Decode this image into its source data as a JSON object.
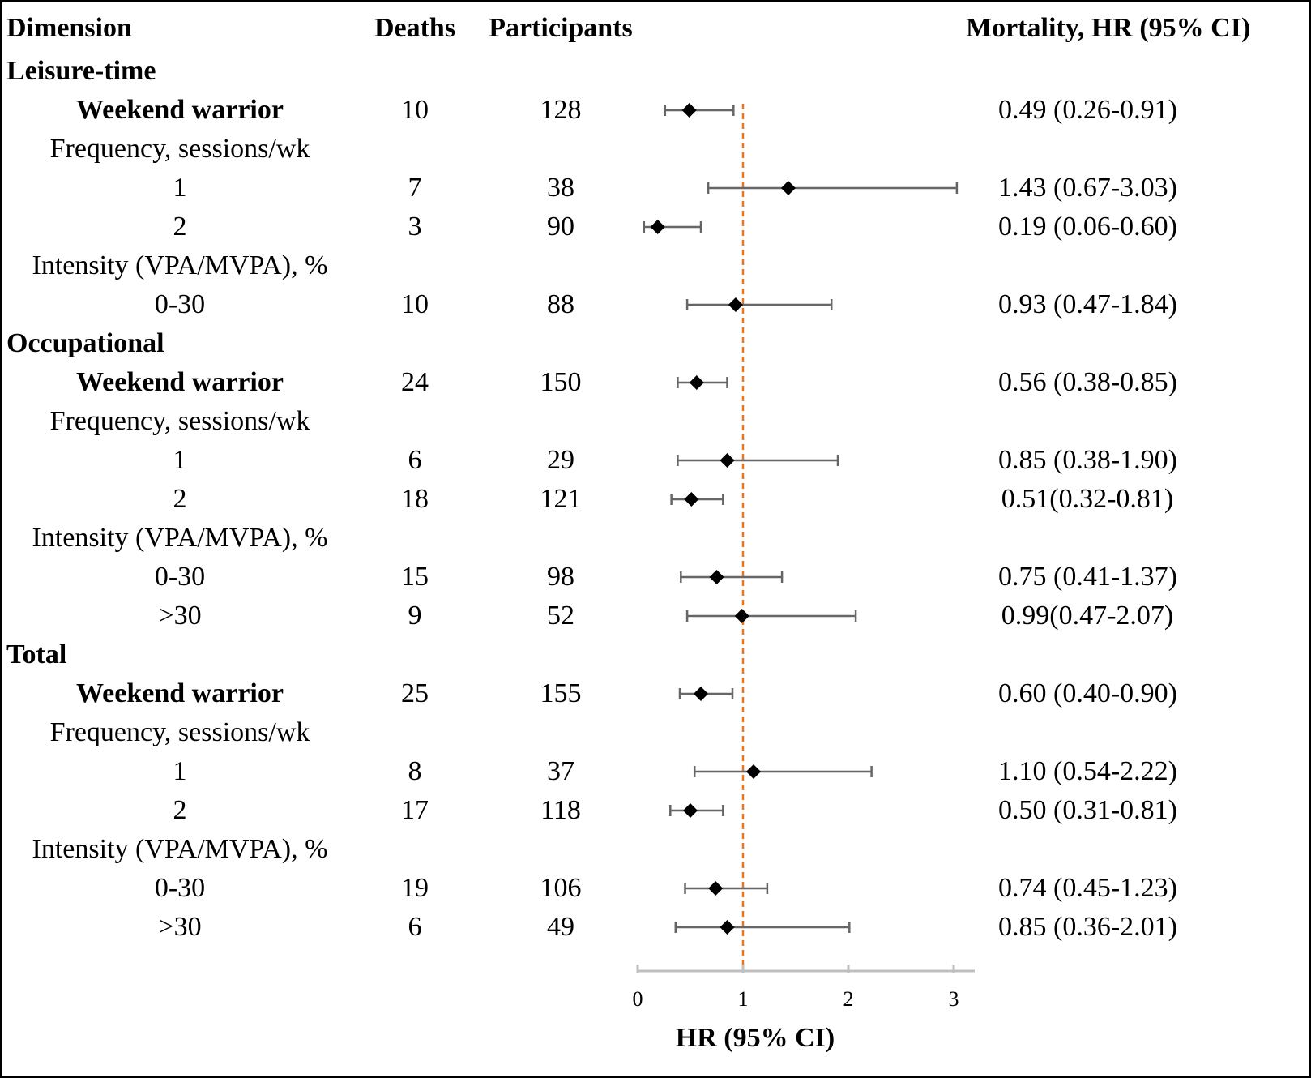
{
  "chart_data": {
    "type": "forest",
    "columns": {
      "dimension": "Dimension",
      "deaths": "Deaths",
      "participants": "Participants",
      "result": "Mortality, HR (95% CI)"
    },
    "xlabel": "HR (95% CI)",
    "xlim": [
      0,
      3.2
    ],
    "xticks": [
      "0",
      "1",
      "2",
      "3"
    ],
    "reference_line": 1,
    "colors": {
      "reference_line": "#e87722",
      "marker": "#000000",
      "whisker": "#666666",
      "axis": "#bfbfbf"
    },
    "rows": [
      {
        "label": "Leisure-time",
        "kind": "section"
      },
      {
        "label": "Weekend warrior",
        "kind": "main",
        "deaths": "10",
        "participants": "128",
        "hr": 0.49,
        "lo": 0.26,
        "hi": 0.91,
        "text": "0.49 (0.26-0.91)"
      },
      {
        "label": "Frequency, sessions/wk",
        "kind": "subheader"
      },
      {
        "label": "1",
        "kind": "item",
        "deaths": "7",
        "participants": "38",
        "hr": 1.43,
        "lo": 0.67,
        "hi": 3.03,
        "text": "1.43 (0.67-3.03)"
      },
      {
        "label": "2",
        "kind": "item",
        "deaths": "3",
        "participants": "90",
        "hr": 0.19,
        "lo": 0.06,
        "hi": 0.6,
        "text": "0.19 (0.06-0.60)"
      },
      {
        "label": "Intensity (VPA/MVPA), %",
        "kind": "subheader"
      },
      {
        "label": "0-30",
        "kind": "item",
        "deaths": "10",
        "participants": "88",
        "hr": 0.93,
        "lo": 0.47,
        "hi": 1.84,
        "text": "0.93 (0.47-1.84)"
      },
      {
        "label": "Occupational",
        "kind": "section"
      },
      {
        "label": "Weekend warrior",
        "kind": "main",
        "deaths": "24",
        "participants": "150",
        "hr": 0.56,
        "lo": 0.38,
        "hi": 0.85,
        "text": "0.56 (0.38-0.85)"
      },
      {
        "label": "Frequency, sessions/wk",
        "kind": "subheader"
      },
      {
        "label": "1",
        "kind": "item",
        "deaths": "6",
        "participants": "29",
        "hr": 0.85,
        "lo": 0.38,
        "hi": 1.9,
        "text": "0.85 (0.38-1.90)"
      },
      {
        "label": "2",
        "kind": "item",
        "deaths": "18",
        "participants": "121",
        "hr": 0.51,
        "lo": 0.32,
        "hi": 0.81,
        "text": "0.51(0.32-0.81)"
      },
      {
        "label": "Intensity (VPA/MVPA), %",
        "kind": "subheader"
      },
      {
        "label": "0-30",
        "kind": "item",
        "deaths": "15",
        "participants": "98",
        "hr": 0.75,
        "lo": 0.41,
        "hi": 1.37,
        "text": "0.75 (0.41-1.37)"
      },
      {
        "label": ">30",
        "kind": "item",
        "deaths": "9",
        "participants": "52",
        "hr": 0.99,
        "lo": 0.47,
        "hi": 2.07,
        "text": "0.99(0.47-2.07)"
      },
      {
        "label": "Total",
        "kind": "section"
      },
      {
        "label": "Weekend warrior",
        "kind": "main",
        "deaths": "25",
        "participants": "155",
        "hr": 0.6,
        "lo": 0.4,
        "hi": 0.9,
        "text": "0.60 (0.40-0.90)"
      },
      {
        "label": "Frequency, sessions/wk",
        "kind": "subheader"
      },
      {
        "label": "1",
        "kind": "item",
        "deaths": "8",
        "participants": "37",
        "hr": 1.1,
        "lo": 0.54,
        "hi": 2.22,
        "text": "1.10 (0.54-2.22)"
      },
      {
        "label": "2",
        "kind": "item",
        "deaths": "17",
        "participants": "118",
        "hr": 0.5,
        "lo": 0.31,
        "hi": 0.81,
        "text": "0.50 (0.31-0.81)"
      },
      {
        "label": "Intensity (VPA/MVPA), %",
        "kind": "subheader"
      },
      {
        "label": "0-30",
        "kind": "item",
        "deaths": "19",
        "participants": "106",
        "hr": 0.74,
        "lo": 0.45,
        "hi": 1.23,
        "text": "0.74 (0.45-1.23)"
      },
      {
        "label": ">30",
        "kind": "item",
        "deaths": "6",
        "participants": "49",
        "hr": 0.85,
        "lo": 0.36,
        "hi": 2.01,
        "text": "0.85 (0.36-2.01)"
      }
    ]
  }
}
